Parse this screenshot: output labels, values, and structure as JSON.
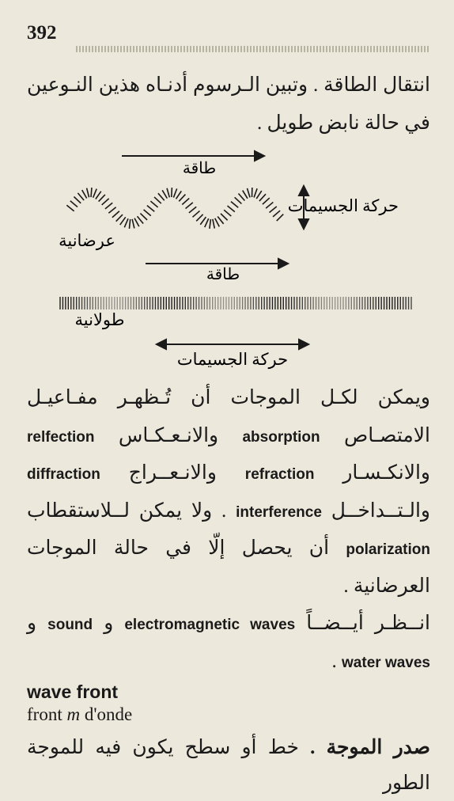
{
  "page_number": "392",
  "intro_ar": "انتقال الطاقة . وتبين الـرسوم أدنـاه هذين النـوعين في حالة نابض طويل .",
  "diagram1": {
    "energy_label": "طاقة",
    "particles_label": "حركة الجسيمات",
    "transverse_label": "عرضانية",
    "arrow_color": "#1a1a1a",
    "stroke": "#1a1a1a"
  },
  "diagram2": {
    "energy_label": "طاقة",
    "particles_label": "حركة الجسيمات",
    "longitudinal_label": "طولانية",
    "stroke": "#1a1a1a"
  },
  "p1": {
    "t1": "ويمكن لكـل الموجات أن تُـظهـر مفـاعيـل الامتصـاص ",
    "l1": "absorption",
    "t2": " والانـعـكـاس ",
    "l2": "relfection",
    "t3": " والانكـسـار ",
    "l3": "refraction",
    "t4": " والانـعــراج ",
    "l4": "diffraction",
    "t5": " والـتــداخــل ",
    "l5": "interference",
    "t6": " . ولا يمكن لــلاستقطاب ",
    "l6": "polarization",
    "t7": " أن يحصل إلّا في حالة الموجات العرضانية ."
  },
  "p2": {
    "t1": "انــظـر أيــضــاً ",
    "l1": "electromagnetic waves",
    "t2": " و ",
    "l2": "sound",
    "t3": " و ",
    "l3": "water waves",
    "t4": " ."
  },
  "entry": {
    "en": "wave front",
    "fr1": "front ",
    "fr_gender": "m",
    "fr2": " d'onde",
    "ar_head": "صدر الموجة .",
    "ar_rest": " خط أو سطح يكون فيه للموجة الطور"
  }
}
